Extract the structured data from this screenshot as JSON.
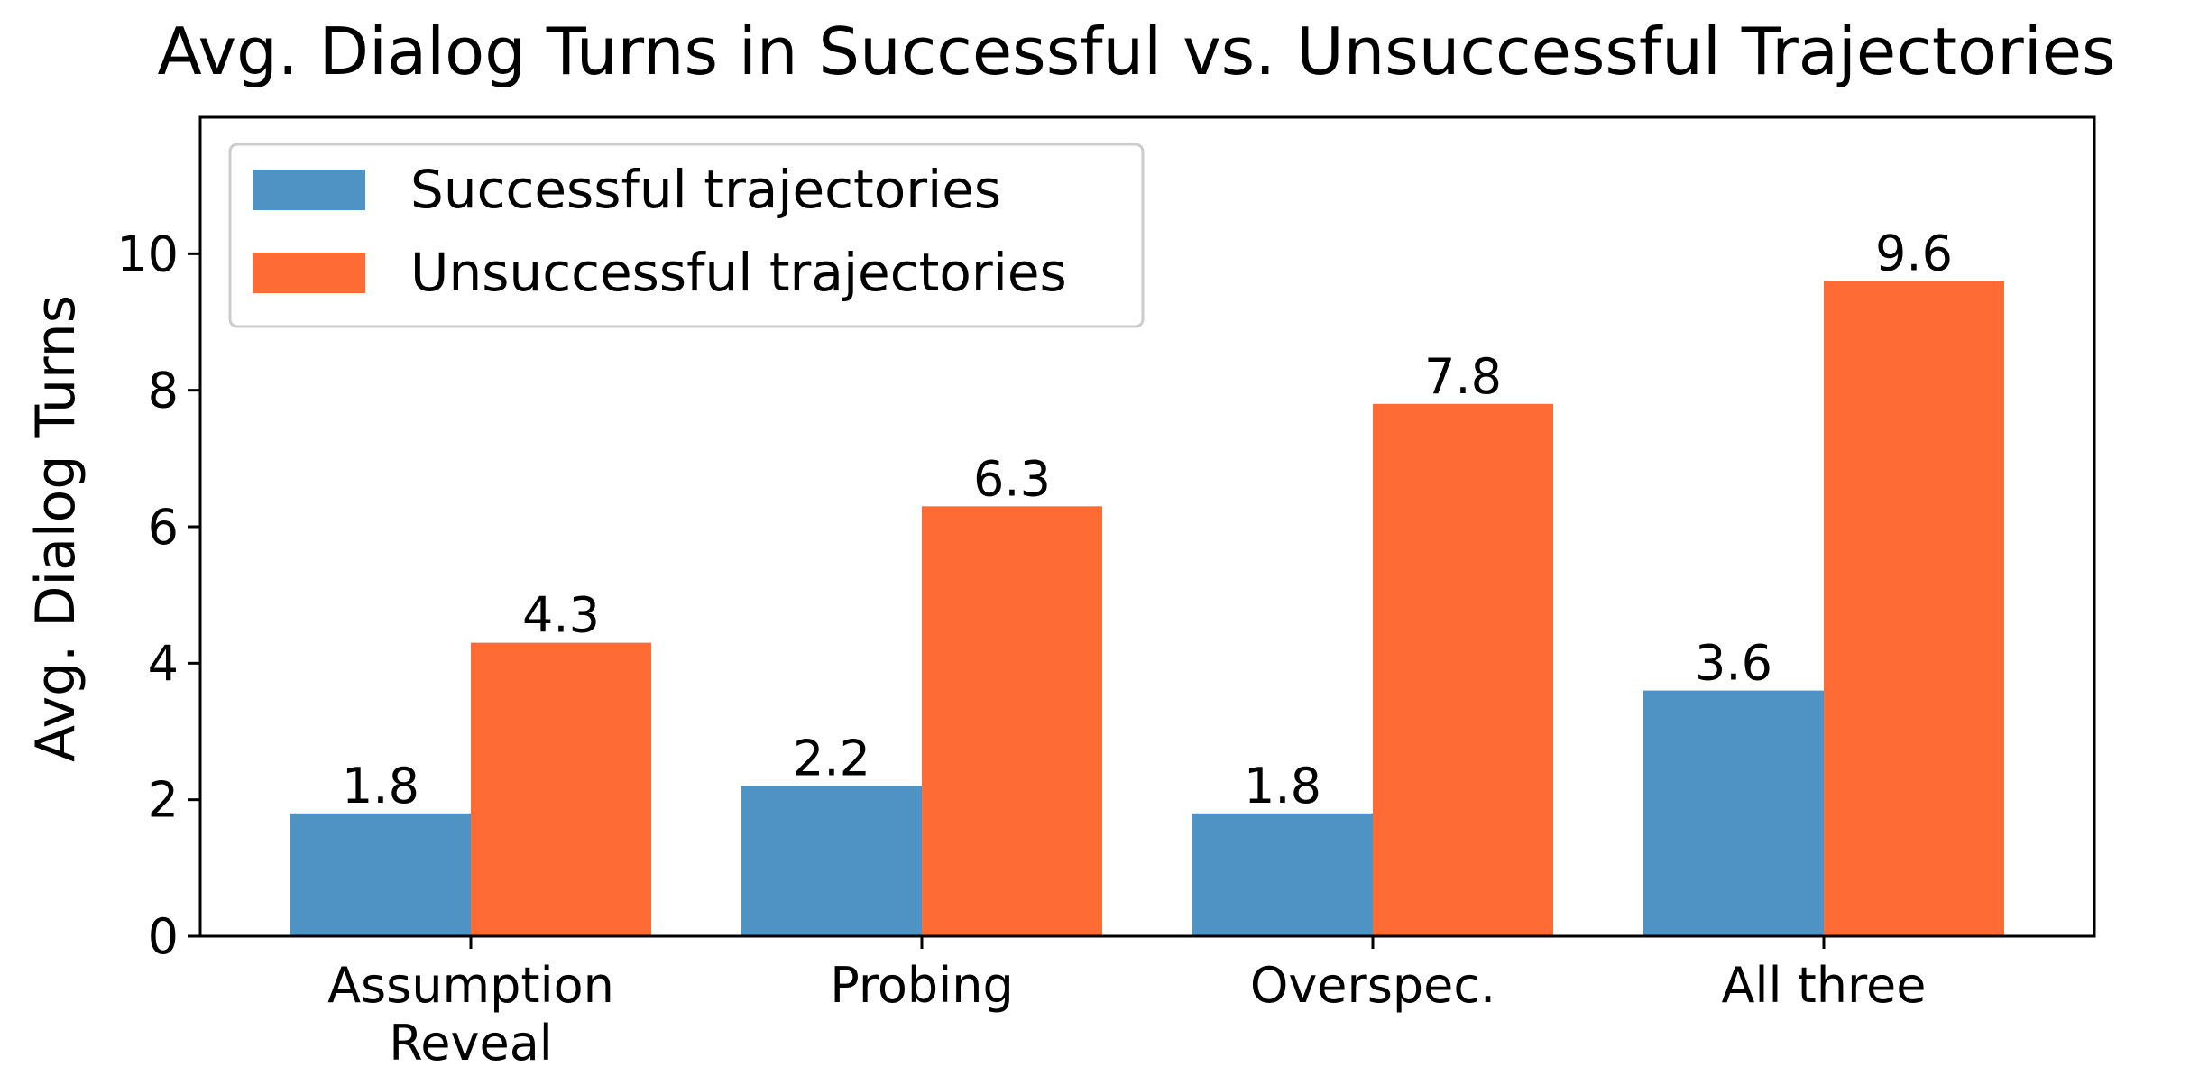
{
  "chart_data": {
    "type": "bar",
    "title": "Avg. Dialog Turns in Successful vs. Unsuccessful Trajectories",
    "xlabel": "",
    "ylabel": "Avg. Dialog Turns",
    "categories": [
      [
        "Assumption",
        "Reveal"
      ],
      [
        "Probing"
      ],
      [
        "Overspec."
      ],
      [
        "All three"
      ]
    ],
    "series": [
      {
        "name": "Successful trajectories",
        "color": "#4e93c4",
        "values": [
          1.8,
          2.2,
          1.8,
          3.6
        ]
      },
      {
        "name": "Unsuccessful trajectories",
        "color": "#ff6b35",
        "values": [
          4.3,
          6.3,
          7.8,
          9.6
        ]
      }
    ],
    "ylim": [
      0,
      12
    ],
    "yticks": [
      0,
      2,
      4,
      6,
      8,
      10
    ],
    "grid": false,
    "legend_position": "top-left"
  }
}
